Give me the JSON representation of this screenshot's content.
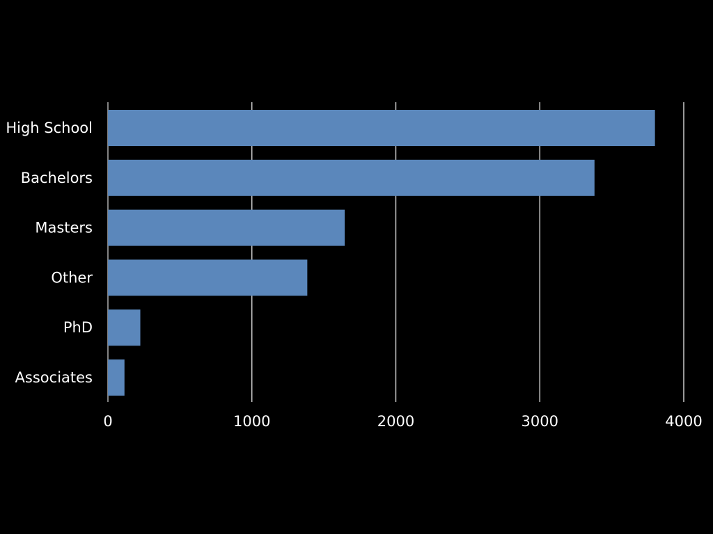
{
  "colors": {
    "background": "#000000",
    "bar": "#5b87bb",
    "gridline": "#d9d9d9",
    "text": "#ffffff"
  },
  "chart_data": {
    "type": "bar",
    "orientation": "horizontal",
    "categories": [
      "High School",
      "Bachelors",
      "Masters",
      "Other",
      "PhD",
      "Associates"
    ],
    "values": [
      3800,
      3380,
      1645,
      1385,
      225,
      115
    ],
    "xlim": [
      0,
      4000
    ],
    "xticks": [
      0,
      1000,
      2000,
      3000,
      4000
    ],
    "xtick_labels": [
      "0",
      "1000",
      "2000",
      "3000",
      "4000"
    ],
    "grid": true,
    "title": "",
    "xlabel": "",
    "ylabel": "",
    "legend": "none"
  }
}
